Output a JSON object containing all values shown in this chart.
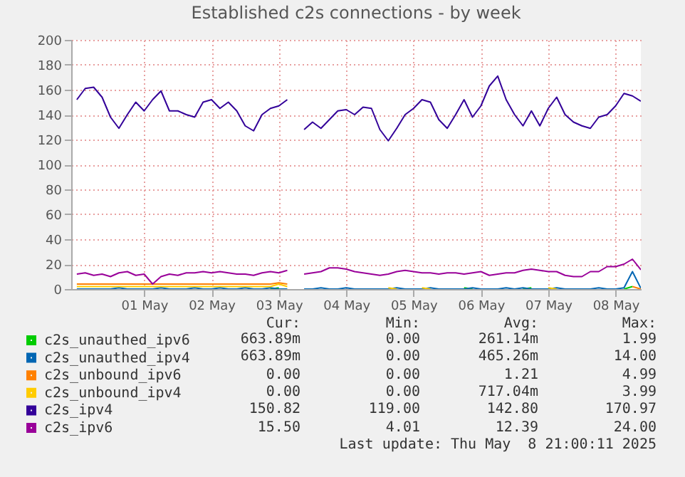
{
  "chart_data": {
    "type": "line",
    "title": "Established c2s connections - by week",
    "x": [
      "2025-04-30T12:00",
      "2025-04-30T15:00",
      "2025-04-30T18:00",
      "2025-04-30T21:00",
      "2025-05-01T00:00",
      "2025-05-01T03:00",
      "2025-05-01T06:00",
      "2025-05-01T09:00",
      "2025-05-01T12:00",
      "2025-05-01T15:00",
      "2025-05-01T18:00",
      "2025-05-01T21:00",
      "2025-05-02T00:00",
      "2025-05-02T03:00",
      "2025-05-02T06:00",
      "2025-05-02T09:00",
      "2025-05-02T12:00",
      "2025-05-02T15:00",
      "2025-05-02T18:00",
      "2025-05-02T21:00",
      "2025-05-03T00:00",
      "2025-05-03T03:00",
      "2025-05-03T06:00",
      "2025-05-03T09:00",
      "2025-05-03T12:00",
      "2025-05-03T15:00",
      "2025-05-03T18:00",
      "2025-05-03T21:00",
      "2025-05-04T00:00",
      "2025-05-04T03:00",
      "2025-05-04T06:00",
      "2025-05-04T09:00",
      "2025-05-04T12:00",
      "2025-05-04T15:00",
      "2025-05-04T18:00",
      "2025-05-04T21:00",
      "2025-05-05T00:00",
      "2025-05-05T03:00",
      "2025-05-05T06:00",
      "2025-05-05T09:00",
      "2025-05-05T12:00",
      "2025-05-05T15:00",
      "2025-05-05T18:00",
      "2025-05-05T21:00",
      "2025-05-06T00:00",
      "2025-05-06T03:00",
      "2025-05-06T06:00",
      "2025-05-06T09:00",
      "2025-05-06T12:00",
      "2025-05-06T15:00",
      "2025-05-06T18:00",
      "2025-05-06T21:00",
      "2025-05-07T00:00",
      "2025-05-07T03:00",
      "2025-05-07T06:00",
      "2025-05-07T09:00",
      "2025-05-07T12:00",
      "2025-05-07T15:00",
      "2025-05-07T18:00",
      "2025-05-07T21:00",
      "2025-05-08T00:00",
      "2025-05-08T03:00",
      "2025-05-08T06:00",
      "2025-05-08T09:00",
      "2025-05-08T12:00",
      "2025-05-08T15:00",
      "2025-05-08T18:00",
      "2025-05-08T21:00"
    ],
    "series": [
      {
        "name": "c2s_unauthed_ipv6",
        "color": "#00cc00",
        "values": [
          null,
          null,
          null,
          null,
          null,
          null,
          null,
          null,
          null,
          null,
          null,
          null,
          null,
          null,
          null,
          null,
          null,
          null,
          null,
          null,
          null,
          null,
          null,
          0,
          1,
          null,
          null,
          null,
          null,
          null,
          null,
          null,
          null,
          null,
          null,
          null,
          null,
          null,
          null,
          null,
          null,
          null,
          null,
          null,
          null,
          null,
          1,
          0,
          null,
          null,
          null,
          null,
          null,
          0,
          1,
          null,
          null,
          null,
          null,
          null,
          null,
          null,
          null,
          null,
          null,
          0,
          1.99,
          null
        ]
      },
      {
        "name": "c2s_unauthed_ipv4",
        "color": "#0066b3",
        "values": [
          0,
          0,
          0,
          0,
          0,
          1,
          0,
          0,
          0,
          0,
          1,
          0,
          0,
          0,
          1,
          0,
          0,
          1,
          0,
          0,
          1,
          0,
          0,
          1,
          0,
          0,
          null,
          0,
          0,
          1,
          0,
          0,
          1,
          0,
          0,
          0,
          0,
          0,
          1,
          0,
          0,
          0,
          1,
          0,
          0,
          0,
          0,
          1,
          0,
          0,
          0,
          1,
          0,
          1,
          0,
          0,
          0,
          1,
          0,
          0,
          0,
          0,
          1,
          0,
          0,
          1,
          14,
          0.66
        ]
      },
      {
        "name": "c2s_unbound_ipv6",
        "color": "#ff8000",
        "values": [
          4,
          4,
          4,
          4,
          4,
          4,
          4,
          4,
          4,
          4,
          4,
          4,
          4,
          4,
          4,
          4,
          4,
          4,
          4,
          4,
          4,
          4,
          4,
          4,
          4.99,
          4,
          null,
          null,
          null,
          null,
          null,
          null,
          null,
          null,
          null,
          null,
          null,
          null,
          null,
          null,
          null,
          null,
          null,
          null,
          null,
          null,
          null,
          null,
          null,
          null,
          null,
          null,
          null,
          null,
          null,
          null,
          null,
          null,
          null,
          null,
          null,
          null,
          null,
          null,
          null,
          null,
          2,
          0
        ]
      },
      {
        "name": "c2s_unbound_ipv4",
        "color": "#ffcc00",
        "values": [
          2,
          2,
          2,
          2,
          2,
          2,
          2,
          2,
          2,
          2,
          2,
          2,
          2,
          2,
          2,
          2,
          2,
          2,
          2,
          2,
          2,
          2,
          2,
          2,
          3.99,
          2,
          null,
          null,
          null,
          null,
          null,
          null,
          null,
          null,
          null,
          null,
          null,
          1,
          0,
          null,
          null,
          1,
          0,
          null,
          null,
          null,
          null,
          null,
          null,
          null,
          null,
          null,
          null,
          null,
          null,
          null,
          1,
          0,
          null,
          null,
          null,
          null,
          null,
          null,
          null,
          null,
          null,
          null
        ]
      },
      {
        "name": "c2s_ipv4",
        "color": "#330099",
        "values": [
          152,
          161,
          162,
          154,
          138,
          129,
          140,
          150,
          143,
          152,
          159,
          143,
          143,
          140,
          138,
          150,
          152,
          145,
          150,
          143,
          131,
          127,
          140,
          145,
          147,
          152,
          null,
          128,
          134,
          129,
          136,
          143,
          144,
          140,
          146,
          145,
          128,
          119,
          129,
          140,
          145,
          152,
          150,
          136,
          129,
          140,
          152,
          138,
          147,
          163,
          170.97,
          152,
          140,
          131,
          143,
          131,
          145,
          154,
          140,
          134,
          131,
          129,
          138,
          140,
          147,
          157,
          155,
          150.82
        ]
      },
      {
        "name": "c2s_ipv6",
        "color": "#990099",
        "values": [
          12,
          13,
          11,
          12,
          10,
          13,
          14,
          11,
          12,
          4.01,
          10,
          12,
          11,
          13,
          13,
          14,
          13,
          14,
          13,
          12,
          12,
          11,
          13,
          14,
          13,
          15,
          null,
          12,
          13,
          14,
          17,
          17,
          16,
          14,
          13,
          12,
          11,
          12,
          14,
          15,
          14,
          13,
          13,
          12,
          13,
          13,
          12,
          13,
          14,
          11,
          12,
          13,
          13,
          15,
          16,
          15,
          14,
          14,
          11,
          10,
          10,
          14,
          14,
          18,
          18,
          20,
          24,
          15.5
        ]
      }
    ],
    "xlim": [
      "2025-04-30T10:00",
      "2025-05-08T21:00"
    ],
    "xticks": [
      {
        "value": "2025-05-01T12:00",
        "label": "01 May"
      },
      {
        "value": "2025-05-02T12:00",
        "label": "02 May"
      },
      {
        "value": "2025-05-03T12:00",
        "label": "03 May"
      },
      {
        "value": "2025-05-04T12:00",
        "label": "04 May"
      },
      {
        "value": "2025-05-05T12:00",
        "label": "05 May"
      },
      {
        "value": "2025-05-06T12:00",
        "label": "06 May"
      },
      {
        "value": "2025-05-07T12:00",
        "label": "07 May"
      },
      {
        "value": "2025-05-08T12:00",
        "label": "08 May"
      }
    ],
    "ylim": [
      0,
      200
    ],
    "yticks": [
      0,
      20,
      40,
      60,
      80,
      100,
      120,
      140,
      160,
      180,
      200
    ],
    "grid": true,
    "legend": "bottom",
    "annotations": [
      "Cur:",
      "Min:",
      "Avg:",
      "Max:",
      "663.89m",
      "0.00",
      "261.14m",
      "1.99",
      "663.89m",
      "0.00",
      "465.26m",
      "14.00",
      "0.00",
      "0.00",
      "1.21",
      "4.99",
      "0.00",
      "0.00",
      "717.04m",
      "3.99",
      "150.82",
      "119.00",
      "142.80",
      "170.97",
      "15.50",
      "4.01",
      "12.39",
      "24.00",
      "Last update: Thu May  8 21:00:11 2025"
    ]
  }
}
